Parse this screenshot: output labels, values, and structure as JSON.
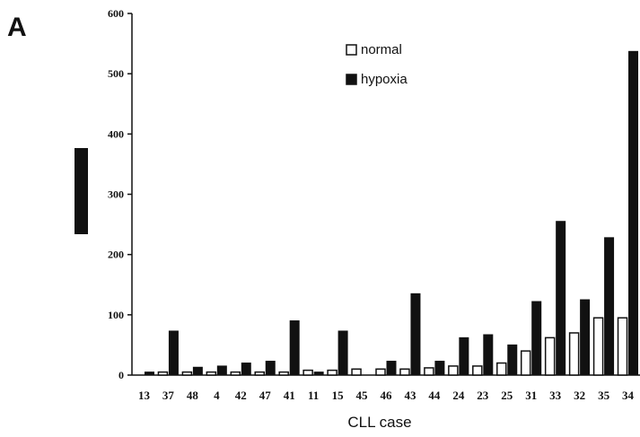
{
  "panel_label": "A",
  "chart_data": {
    "type": "bar",
    "title": "",
    "xlabel": "CLL case",
    "ylabel": "",
    "ylim": [
      0,
      600
    ],
    "yticks": [
      0,
      100,
      200,
      300,
      400,
      500,
      600
    ],
    "grid": false,
    "legend_position": "top-center",
    "categories": [
      "13",
      "37",
      "48",
      "4",
      "42",
      "47",
      "41",
      "11",
      "15",
      "45",
      "46",
      "43",
      "44",
      "24",
      "23",
      "25",
      "31",
      "33",
      "32",
      "35",
      "34"
    ],
    "series": [
      {
        "name": "normal",
        "color": "#ffffff",
        "values": [
          0,
          5,
          5,
          5,
          5,
          5,
          5,
          8,
          8,
          10,
          10,
          10,
          12,
          15,
          15,
          20,
          40,
          62,
          70,
          95,
          95
        ]
      },
      {
        "name": "hypoxia",
        "color": "#111111",
        "values": [
          5,
          73,
          13,
          15,
          20,
          23,
          90,
          5,
          73,
          0,
          23,
          135,
          23,
          62,
          67,
          50,
          122,
          255,
          125,
          228,
          537
        ]
      }
    ]
  },
  "colors": {
    "bar_fill_dark": "#111111",
    "bar_fill_light": "#ffffff",
    "axis": "#111111"
  }
}
